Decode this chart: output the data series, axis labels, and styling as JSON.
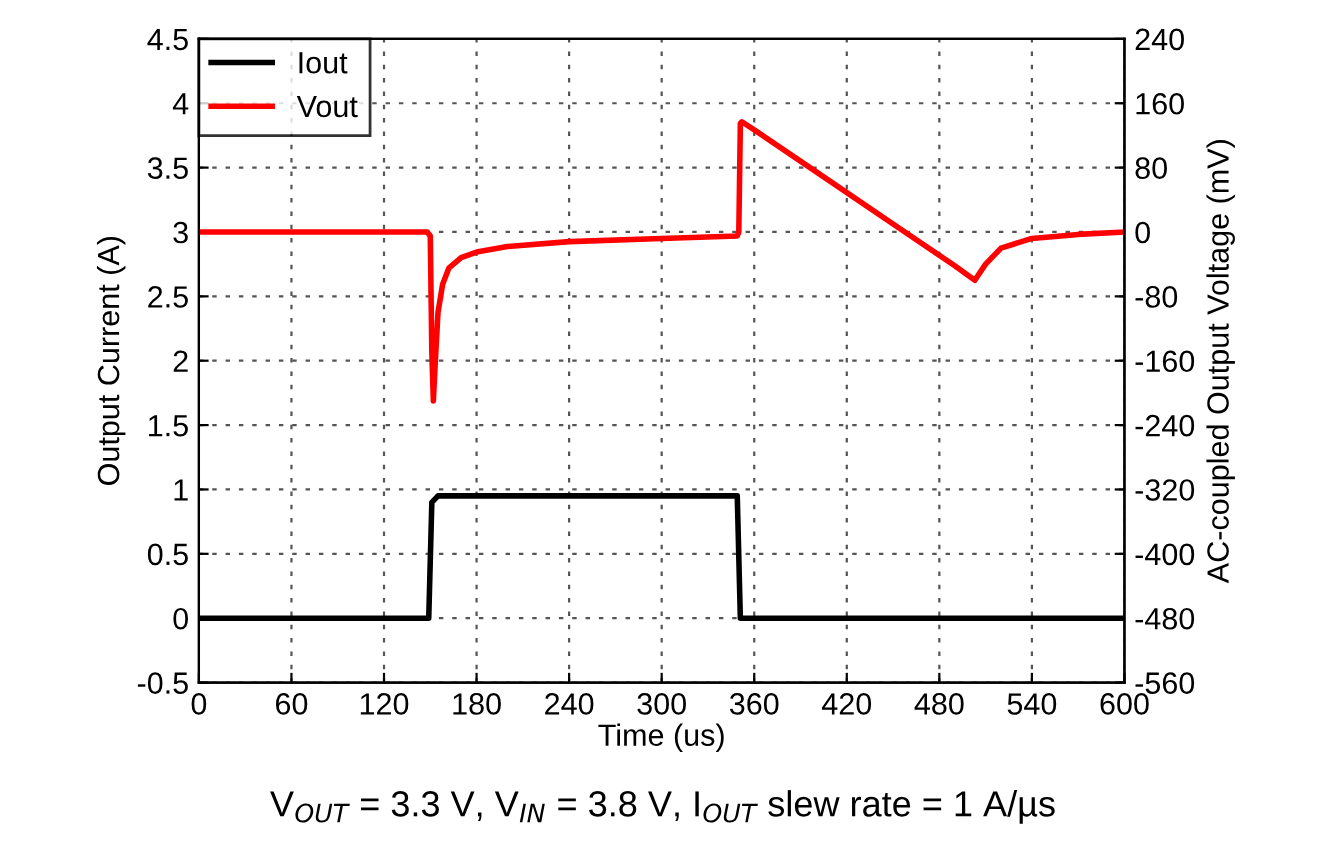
{
  "chart_data": {
    "type": "line",
    "xlabel": "Time (us)",
    "ylabel": "Output Current (A)",
    "y2label": "AC-coupled Output Voltage (mV)",
    "xlim": [
      0,
      600
    ],
    "xticks": [
      0,
      60,
      120,
      180,
      240,
      300,
      360,
      420,
      480,
      540,
      600
    ],
    "ylim": [
      -0.5,
      4.5
    ],
    "yticks": [
      -0.5,
      0,
      0.5,
      1,
      1.5,
      2,
      2.5,
      3,
      3.5,
      4,
      4.5
    ],
    "y2lim": [
      -560,
      240
    ],
    "y2ticks": [
      -560,
      -480,
      -400,
      -320,
      -240,
      -160,
      -80,
      0,
      80,
      160,
      240
    ],
    "grid": true,
    "legend": "top left",
    "line_style": "solid",
    "marker": "none",
    "annotations": [
      "V$_{OUT}$ = 3.3 V, V$_{IN}$ = 3.8 V, I$_{OUT}$ slew rate = 1 A/µs"
    ],
    "series": [
      {
        "name": "Iout",
        "color": "#000000",
        "x": [
          0,
          149,
          151,
          155,
          349,
          351,
          600
        ],
        "values": [
          0,
          0,
          0.9,
          0.95,
          0.95,
          0,
          0
        ]
      },
      {
        "name": "Vout",
        "color": "#ff0000",
        "axis": "y2",
        "x": [
          0,
          148,
          150,
          151,
          152,
          153,
          155,
          158,
          162,
          170,
          180,
          200,
          240,
          300,
          349,
          350,
          351,
          352,
          360,
          400,
          450,
          490,
          503,
          510,
          520,
          540,
          570,
          600
        ],
        "values": [
          0,
          0,
          -5,
          -150,
          -210,
          -170,
          -100,
          -65,
          -45,
          -32,
          -25,
          -18,
          -12,
          -8,
          -5,
          0,
          135,
          137,
          127,
          75,
          10,
          -42,
          -60,
          -40,
          -20,
          -8,
          -3,
          0
        ]
      }
    ]
  }
}
